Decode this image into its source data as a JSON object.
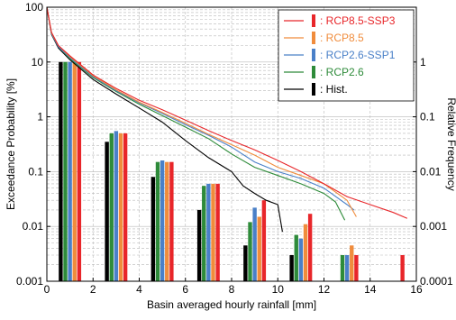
{
  "chart_data": {
    "type": "bar",
    "xlabel": "Basin averaged hourly rainfall [mm]",
    "ylabel_left": "Exceedance Probability [%]",
    "ylabel_right": "Relative Frequency",
    "xlim": [
      0,
      16
    ],
    "ylim_left": [
      0.001,
      100
    ],
    "ylim_right": [
      0.0001,
      10
    ],
    "yscale": "log",
    "grid": true,
    "legend_position": "top-right",
    "x_ticks": [
      "0",
      "2",
      "4",
      "6",
      "8",
      "10",
      "12",
      "14",
      "16"
    ],
    "y_ticks_left": [
      "0.001",
      "0.01",
      "0.1",
      "1",
      "10",
      "100"
    ],
    "y_ticks_right": [
      "0.0001",
      "0.001",
      "0.01",
      "0.1",
      "1"
    ],
    "series": [
      {
        "name": "Hist.",
        "color": "#000000",
        "line_color": "#000000",
        "curve": [
          [
            0,
            100
          ],
          [
            0.2,
            32
          ],
          [
            0.5,
            18
          ],
          [
            1,
            11
          ],
          [
            2,
            4.8
          ],
          [
            3,
            2.6
          ],
          [
            4,
            1.45
          ],
          [
            5,
            0.8
          ],
          [
            6,
            0.37
          ],
          [
            7,
            0.18
          ],
          [
            8,
            0.1
          ],
          [
            8.5,
            0.055
          ],
          [
            9,
            0.04
          ],
          [
            9.5,
            0.03
          ],
          [
            10,
            0.025
          ],
          [
            10.2,
            0.008
          ]
        ],
        "bar_x": [
          0.6,
          2.6,
          4.6,
          6.6,
          8.6,
          10.6
        ],
        "bar_values": [
          1.0,
          0.035,
          0.008,
          0.002,
          0.00045,
          0.0003
        ]
      },
      {
        "name": "RCP2.6",
        "color": "#2e8b3a",
        "line_color": "#2e8b3a",
        "curve": [
          [
            0,
            100
          ],
          [
            0.2,
            33
          ],
          [
            0.5,
            19
          ],
          [
            1,
            11.5
          ],
          [
            2,
            5.2
          ],
          [
            3,
            2.9
          ],
          [
            4,
            1.7
          ],
          [
            5,
            1.05
          ],
          [
            6,
            0.65
          ],
          [
            7,
            0.4
          ],
          [
            8,
            0.21
          ],
          [
            9,
            0.12
          ],
          [
            10,
            0.085
          ],
          [
            11,
            0.06
          ],
          [
            12,
            0.04
          ],
          [
            12.5,
            0.028
          ],
          [
            12.9,
            0.013
          ]
        ],
        "bar_x": [
          0.8,
          2.8,
          4.8,
          6.8,
          8.8,
          10.8,
          12.8
        ],
        "bar_values": [
          1.0,
          0.05,
          0.015,
          0.0055,
          0.0012,
          0.0007,
          0.0003
        ]
      },
      {
        "name": "RCP2.6-SSP1",
        "color": "#4a80c8",
        "line_color": "#4a80c8",
        "curve": [
          [
            0,
            100
          ],
          [
            0.2,
            33
          ],
          [
            0.5,
            19
          ],
          [
            1,
            12
          ],
          [
            2,
            5.4
          ],
          [
            3,
            3.0
          ],
          [
            4,
            1.8
          ],
          [
            5,
            1.15
          ],
          [
            6,
            0.72
          ],
          [
            7,
            0.46
          ],
          [
            8,
            0.28
          ],
          [
            9,
            0.15
          ],
          [
            10,
            0.1
          ],
          [
            11,
            0.075
          ],
          [
            12,
            0.05
          ],
          [
            13,
            0.025
          ],
          [
            13.3,
            0.02
          ]
        ],
        "bar_x": [
          1.0,
          3.0,
          5.0,
          7.0,
          9.0,
          11.0,
          13.0
        ],
        "bar_values": [
          1.0,
          0.055,
          0.016,
          0.006,
          0.0022,
          0.0006,
          0.0003
        ]
      },
      {
        "name": "RCP8.5",
        "color": "#f08c3c",
        "line_color": "#f08c3c",
        "curve": [
          [
            0,
            100
          ],
          [
            0.2,
            34
          ],
          [
            0.5,
            20
          ],
          [
            1,
            12.5
          ],
          [
            2,
            5.6
          ],
          [
            3,
            3.1
          ],
          [
            4,
            1.85
          ],
          [
            5,
            1.2
          ],
          [
            6,
            0.76
          ],
          [
            7,
            0.48
          ],
          [
            8,
            0.31
          ],
          [
            9,
            0.2
          ],
          [
            10,
            0.12
          ],
          [
            11,
            0.085
          ],
          [
            12,
            0.06
          ],
          [
            13,
            0.03
          ],
          [
            13.4,
            0.015
          ]
        ],
        "bar_x": [
          1.2,
          3.2,
          5.2,
          7.2,
          9.2,
          11.2,
          13.2
        ],
        "bar_values": [
          1.0,
          0.05,
          0.015,
          0.006,
          0.0015,
          0.0011,
          0.00045
        ]
      },
      {
        "name": "RCP8.5-SSP3",
        "color": "#e8262a",
        "line_color": "#e8262a",
        "curve": [
          [
            0,
            100
          ],
          [
            0.2,
            35
          ],
          [
            0.5,
            20
          ],
          [
            1,
            13
          ],
          [
            2,
            5.8
          ],
          [
            3,
            3.3
          ],
          [
            4,
            2.0
          ],
          [
            5,
            1.35
          ],
          [
            6,
            0.87
          ],
          [
            7,
            0.56
          ],
          [
            8,
            0.37
          ],
          [
            9,
            0.25
          ],
          [
            10,
            0.16
          ],
          [
            11,
            0.1
          ],
          [
            12,
            0.06
          ],
          [
            13,
            0.035
          ],
          [
            14,
            0.025
          ],
          [
            15,
            0.018
          ],
          [
            15.6,
            0.014
          ]
        ],
        "bar_x": [
          1.4,
          3.4,
          5.4,
          7.4,
          9.4,
          11.4,
          13.4,
          15.4
        ],
        "bar_values": [
          1.0,
          0.05,
          0.015,
          0.006,
          0.003,
          0.0017,
          0.0003,
          0.0003
        ]
      }
    ]
  }
}
